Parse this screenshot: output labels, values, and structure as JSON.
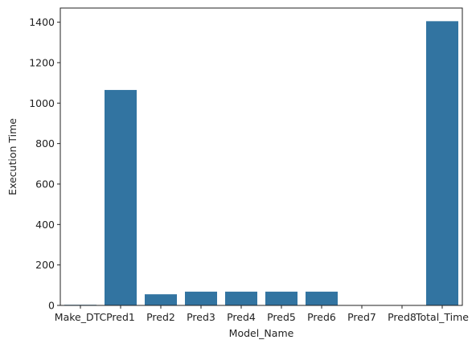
{
  "chart_data": {
    "type": "bar",
    "categories": [
      "Make_DTC",
      "Pred1",
      "Pred2",
      "Pred3",
      "Pred4",
      "Pred5",
      "Pred6",
      "Pred7",
      "Pred8",
      "Total_Time"
    ],
    "values": [
      3,
      1065,
      55,
      68,
      68,
      68,
      68,
      1,
      1,
      1405
    ],
    "xlabel": "Model_Name",
    "ylabel": "Execution Time",
    "ylim": [
      0,
      1470
    ],
    "yticks": [
      0,
      200,
      400,
      600,
      800,
      1000,
      1200,
      1400
    ],
    "grid": false,
    "bar_color": "#3274a1"
  }
}
